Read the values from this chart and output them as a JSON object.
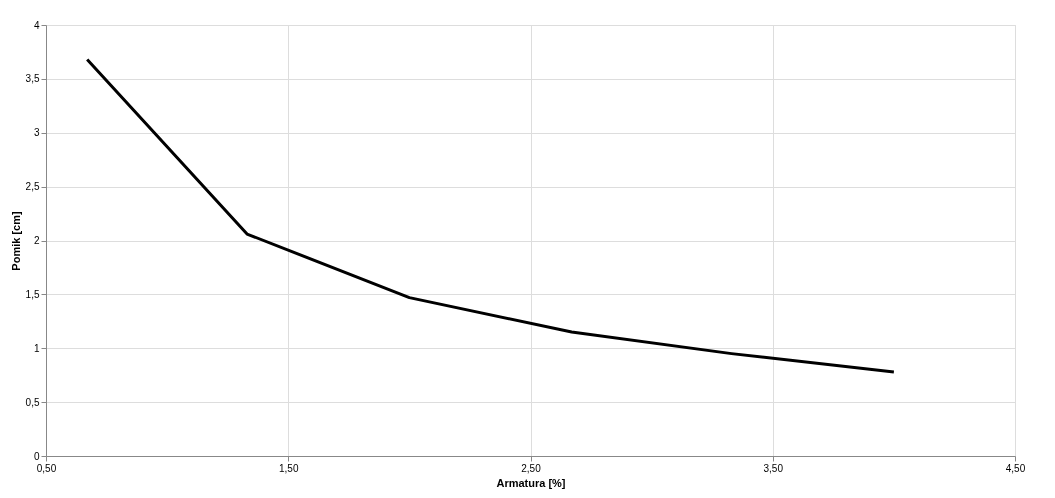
{
  "chart_data": {
    "type": "line",
    "xlabel": "Armatura [%]",
    "ylabel": "Pomik [cm]",
    "x": [
      0.67,
      1.33,
      2.0,
      2.67,
      3.33,
      4.0
    ],
    "series": [
      {
        "color": "#000000",
        "values": [
          3.68,
          2.06,
          1.47,
          1.15,
          0.95,
          0.78
        ]
      }
    ],
    "xlim": [
      0.5,
      4.5
    ],
    "xticks": [
      {
        "value": 0.5,
        "label": "0,50"
      },
      {
        "value": 1.5,
        "label": "1,50"
      },
      {
        "value": 2.5,
        "label": "2,50"
      },
      {
        "value": 3.5,
        "label": "3,50"
      },
      {
        "value": 4.5,
        "label": "4,50"
      }
    ],
    "ylim": [
      0,
      4
    ],
    "yticks": [
      0,
      {
        "value": 0.5,
        "label": "0,5"
      },
      1,
      {
        "value": 1.5,
        "label": "1,5"
      },
      2,
      {
        "value": 2.5,
        "label": "2,5"
      },
      3,
      {
        "value": 3.5,
        "label": "3,5"
      },
      4
    ],
    "grid": true,
    "marker": "none",
    "line_style": "solid"
  }
}
